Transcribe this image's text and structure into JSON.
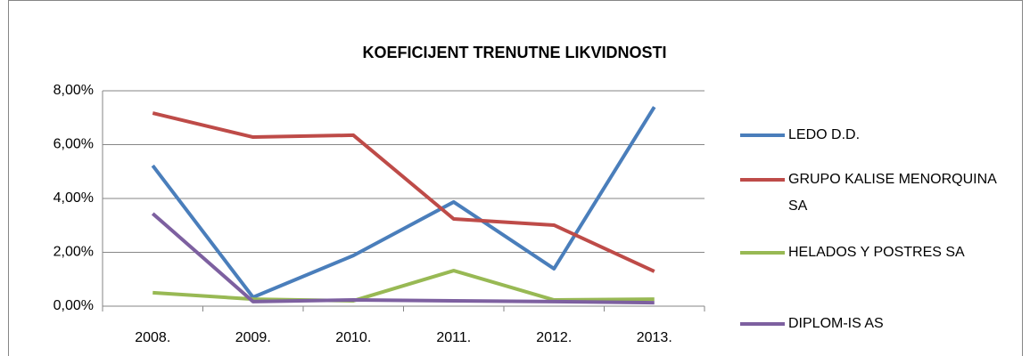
{
  "chart_data": {
    "type": "line",
    "title": "KOEFICIJENT TRENUTNE LIKVIDNOSTI",
    "categories": [
      "2008.",
      "2009.",
      "2010.",
      "2011.",
      "2012.",
      "2013."
    ],
    "series": [
      {
        "name": "LEDO D.D.",
        "color": "#4a7ebb",
        "values": [
          5.22,
          0.33,
          1.88,
          3.87,
          1.39,
          7.4
        ]
      },
      {
        "name": "GRUPO KALISE MENORQUINA SA",
        "color": "#be4b48",
        "values": [
          7.17,
          6.28,
          6.35,
          3.24,
          3.01,
          1.29
        ]
      },
      {
        "name": "HELADOS Y POSTRES SA",
        "color": "#98b954",
        "values": [
          0.5,
          0.26,
          0.2,
          1.32,
          0.23,
          0.26
        ]
      },
      {
        "name": "DIPLOM-IS AS",
        "color": "#7d60a0",
        "values": [
          3.44,
          0.17,
          0.23,
          0.2,
          0.17,
          0.13
        ]
      }
    ],
    "ylim": [
      0,
      8
    ],
    "yticks": [
      {
        "value": 0,
        "label": "0,00%"
      },
      {
        "value": 2,
        "label": "2,00%"
      },
      {
        "value": 4,
        "label": "4,00%"
      },
      {
        "value": 6,
        "label": "6,00%"
      },
      {
        "value": 8,
        "label": "8,00%"
      }
    ],
    "grid": true,
    "legend": "right"
  }
}
